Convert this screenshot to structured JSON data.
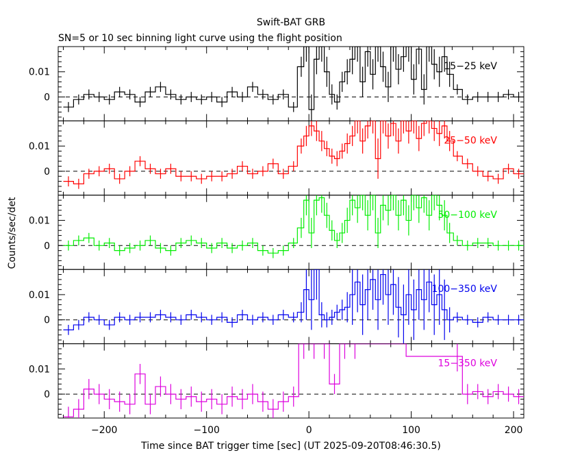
{
  "title": "Swift-BAT GRB",
  "subtitle": "SN=5 or 10 sec binning light curve using the flight position",
  "chart_data": {
    "type": "line",
    "xlabel": "Time since BAT trigger time [sec] (UT 2025-09-20T08:46:30.5)",
    "ylabel": "Counts/sec/det",
    "xlim": [
      -245,
      210
    ],
    "ylim": [
      -0.0095,
      0.02
    ],
    "x_ticks": [
      -200,
      -100,
      0,
      100,
      200
    ],
    "x_tick_labels": [
      "−200",
      "−100",
      "0",
      "100",
      "200"
    ],
    "y_ticks": [
      0,
      0.01
    ],
    "y_tick_labels": [
      "0",
      "0.01"
    ],
    "zero_line": "dashed",
    "panels": [
      {
        "band": "15−25 keV",
        "color": "#000000",
        "x": [
          -235,
          -225,
          -215,
          -205,
          -195,
          -185,
          -175,
          -165,
          -155,
          -145,
          -135,
          -125,
          -115,
          -105,
          -95,
          -85,
          -75,
          -65,
          -55,
          -45,
          -35,
          -25,
          -15,
          -7.5,
          -2.5,
          2.5,
          7.5,
          12.5,
          17.5,
          22.5,
          27.5,
          32.5,
          37.5,
          42.5,
          47.5,
          52.5,
          57.5,
          62.5,
          67.5,
          72.5,
          77.5,
          82.5,
          87.5,
          92.5,
          97.5,
          102.5,
          107.5,
          112.5,
          117.5,
          122.5,
          127.5,
          132.5,
          137.5,
          145,
          155,
          165,
          175,
          185,
          195,
          205
        ],
        "values": [
          -0.004,
          -0.001,
          0.001,
          0.0,
          -0.001,
          0.002,
          0.001,
          -0.002,
          0.002,
          0.004,
          0.001,
          -0.001,
          0.0,
          -0.001,
          0.0,
          -0.002,
          0.002,
          0.0,
          0.004,
          0.001,
          -0.001,
          0.001,
          -0.004,
          0.012,
          0.02,
          -0.005,
          0.015,
          0.02,
          0.01,
          0.001,
          -0.002,
          0.006,
          0.01,
          0.015,
          0.02,
          0.006,
          0.018,
          0.009,
          0.02,
          0.012,
          0.004,
          0.02,
          0.011,
          0.016,
          0.02,
          0.007,
          0.019,
          0.003,
          0.02,
          0.013,
          0.01,
          0.016,
          0.009,
          0.003,
          -0.001,
          0.0,
          0.0,
          0.0,
          0.001,
          0.0
        ],
        "errors": [
          0.002,
          0.002,
          0.002,
          0.002,
          0.002,
          0.002,
          0.002,
          0.002,
          0.002,
          0.002,
          0.002,
          0.002,
          0.002,
          0.002,
          0.002,
          0.002,
          0.002,
          0.002,
          0.002,
          0.002,
          0.002,
          0.002,
          0.002,
          0.004,
          0.006,
          0.006,
          0.006,
          0.006,
          0.006,
          0.004,
          0.003,
          0.004,
          0.005,
          0.006,
          0.006,
          0.006,
          0.006,
          0.006,
          0.006,
          0.006,
          0.006,
          0.006,
          0.006,
          0.006,
          0.006,
          0.006,
          0.006,
          0.006,
          0.006,
          0.006,
          0.006,
          0.006,
          0.005,
          0.002,
          0.002,
          0.002,
          0.002,
          0.002,
          0.002,
          0.002
        ]
      },
      {
        "band": "25−50 keV",
        "color": "#ff0000",
        "x": [
          -235,
          -225,
          -215,
          -205,
          -195,
          -185,
          -175,
          -165,
          -155,
          -145,
          -135,
          -125,
          -115,
          -105,
          -95,
          -85,
          -75,
          -65,
          -55,
          -45,
          -35,
          -25,
          -15,
          -7.5,
          -2.5,
          2.5,
          7.5,
          12.5,
          17.5,
          22.5,
          27.5,
          32.5,
          37.5,
          42.5,
          47.5,
          52.5,
          57.5,
          62.5,
          67.5,
          72.5,
          77.5,
          82.5,
          87.5,
          92.5,
          97.5,
          102.5,
          107.5,
          112.5,
          117.5,
          122.5,
          127.5,
          132.5,
          137.5,
          145,
          155,
          165,
          175,
          185,
          195,
          205
        ],
        "values": [
          -0.004,
          -0.005,
          -0.001,
          0.0,
          0.001,
          -0.003,
          0.0,
          0.004,
          0.001,
          -0.001,
          0.001,
          -0.002,
          -0.002,
          -0.003,
          -0.002,
          -0.002,
          -0.001,
          0.002,
          -0.001,
          0.0,
          0.003,
          -0.001,
          0.002,
          0.01,
          0.014,
          0.018,
          0.016,
          0.012,
          0.009,
          0.006,
          0.005,
          0.008,
          0.011,
          0.014,
          0.02,
          0.012,
          0.018,
          0.02,
          0.005,
          0.02,
          0.014,
          0.019,
          0.012,
          0.02,
          0.016,
          0.02,
          0.013,
          0.019,
          0.02,
          0.017,
          0.015,
          0.018,
          0.012,
          0.006,
          0.003,
          0.0,
          -0.002,
          -0.003,
          0.001,
          -0.001
        ],
        "errors": [
          0.002,
          0.002,
          0.002,
          0.002,
          0.002,
          0.002,
          0.002,
          0.002,
          0.002,
          0.002,
          0.002,
          0.002,
          0.002,
          0.002,
          0.002,
          0.002,
          0.002,
          0.002,
          0.002,
          0.002,
          0.002,
          0.002,
          0.002,
          0.003,
          0.004,
          0.004,
          0.004,
          0.004,
          0.003,
          0.003,
          0.003,
          0.003,
          0.004,
          0.004,
          0.005,
          0.005,
          0.005,
          0.005,
          0.008,
          0.005,
          0.005,
          0.005,
          0.005,
          0.005,
          0.005,
          0.005,
          0.005,
          0.005,
          0.005,
          0.005,
          0.005,
          0.005,
          0.004,
          0.002,
          0.002,
          0.002,
          0.002,
          0.002,
          0.002,
          0.002
        ]
      },
      {
        "band": "50−100 keV",
        "color": "#00ee00",
        "x": [
          -235,
          -225,
          -215,
          -205,
          -195,
          -185,
          -175,
          -165,
          -155,
          -145,
          -135,
          -125,
          -115,
          -105,
          -95,
          -85,
          -75,
          -65,
          -55,
          -45,
          -35,
          -25,
          -15,
          -7.5,
          -2.5,
          2.5,
          7.5,
          12.5,
          17.5,
          22.5,
          27.5,
          32.5,
          37.5,
          42.5,
          47.5,
          52.5,
          57.5,
          62.5,
          67.5,
          72.5,
          77.5,
          82.5,
          87.5,
          92.5,
          97.5,
          102.5,
          107.5,
          112.5,
          117.5,
          122.5,
          127.5,
          132.5,
          137.5,
          145,
          155,
          165,
          175,
          185,
          195,
          205
        ],
        "values": [
          0.0,
          0.002,
          0.003,
          0.0,
          0.001,
          -0.002,
          -0.001,
          0.0,
          0.002,
          -0.001,
          -0.002,
          0.001,
          0.002,
          0.001,
          -0.001,
          0.001,
          -0.001,
          0.0,
          0.001,
          -0.002,
          -0.003,
          -0.002,
          0.001,
          0.007,
          0.018,
          0.005,
          0.018,
          0.019,
          0.012,
          0.006,
          0.002,
          0.005,
          0.01,
          0.018,
          0.015,
          0.02,
          0.012,
          0.02,
          0.005,
          0.016,
          0.014,
          0.02,
          0.012,
          0.018,
          0.01,
          0.02,
          0.015,
          0.019,
          0.012,
          0.02,
          0.016,
          0.012,
          0.005,
          0.002,
          0.0,
          0.001,
          0.001,
          0.0,
          0.0,
          0.0
        ],
        "errors": [
          0.002,
          0.002,
          0.002,
          0.002,
          0.002,
          0.002,
          0.002,
          0.002,
          0.002,
          0.002,
          0.002,
          0.002,
          0.002,
          0.002,
          0.002,
          0.002,
          0.002,
          0.002,
          0.002,
          0.002,
          0.002,
          0.002,
          0.002,
          0.004,
          0.006,
          0.006,
          0.006,
          0.006,
          0.005,
          0.004,
          0.003,
          0.004,
          0.005,
          0.006,
          0.006,
          0.006,
          0.006,
          0.006,
          0.006,
          0.006,
          0.006,
          0.006,
          0.006,
          0.006,
          0.006,
          0.006,
          0.006,
          0.006,
          0.006,
          0.006,
          0.006,
          0.006,
          0.004,
          0.002,
          0.002,
          0.002,
          0.002,
          0.002,
          0.002,
          0.002
        ]
      },
      {
        "band": "100−350 keV",
        "color": "#0000ee",
        "x": [
          -235,
          -225,
          -215,
          -205,
          -195,
          -185,
          -175,
          -165,
          -155,
          -145,
          -135,
          -125,
          -115,
          -105,
          -95,
          -85,
          -75,
          -65,
          -55,
          -45,
          -35,
          -25,
          -15,
          -7.5,
          -2.5,
          2.5,
          7.5,
          12.5,
          17.5,
          22.5,
          27.5,
          32.5,
          37.5,
          42.5,
          47.5,
          52.5,
          57.5,
          62.5,
          67.5,
          72.5,
          77.5,
          82.5,
          87.5,
          92.5,
          97.5,
          102.5,
          107.5,
          112.5,
          117.5,
          122.5,
          127.5,
          132.5,
          137.5,
          145,
          155,
          165,
          175,
          185,
          195,
          205
        ],
        "values": [
          -0.004,
          -0.002,
          0.001,
          0.0,
          -0.002,
          0.001,
          0.0,
          0.001,
          0.001,
          0.002,
          0.001,
          0.0,
          0.002,
          0.001,
          0.0,
          0.001,
          -0.001,
          0.002,
          0.0,
          0.001,
          0.0,
          0.002,
          0.001,
          0.003,
          0.012,
          0.008,
          0.02,
          0.002,
          0.0,
          0.001,
          0.003,
          0.004,
          0.005,
          0.01,
          0.015,
          0.006,
          0.012,
          0.016,
          0.008,
          0.018,
          0.01,
          0.014,
          0.005,
          0.002,
          0.01,
          0.004,
          0.012,
          0.008,
          0.015,
          0.006,
          0.01,
          0.004,
          0.0,
          0.001,
          0.0,
          -0.001,
          0.001,
          0.0,
          0.0,
          0.0
        ],
        "errors": [
          0.002,
          0.002,
          0.002,
          0.002,
          0.002,
          0.002,
          0.002,
          0.002,
          0.002,
          0.002,
          0.002,
          0.002,
          0.002,
          0.002,
          0.002,
          0.002,
          0.002,
          0.002,
          0.002,
          0.002,
          0.002,
          0.002,
          0.002,
          0.004,
          0.012,
          0.012,
          0.012,
          0.005,
          0.003,
          0.003,
          0.003,
          0.004,
          0.006,
          0.012,
          0.012,
          0.012,
          0.012,
          0.012,
          0.012,
          0.012,
          0.012,
          0.012,
          0.012,
          0.012,
          0.012,
          0.012,
          0.012,
          0.012,
          0.012,
          0.012,
          0.012,
          0.012,
          0.005,
          0.002,
          0.002,
          0.002,
          0.002,
          0.002,
          0.002,
          0.002
        ]
      },
      {
        "band": "15−350 keV",
        "color": "#dd00dd",
        "x": [
          -235,
          -225,
          -215,
          -205,
          -195,
          -185,
          -175,
          -165,
          -155,
          -145,
          -135,
          -125,
          -115,
          -105,
          -95,
          -85,
          -75,
          -65,
          -55,
          -45,
          -35,
          -25,
          -15,
          -5,
          5,
          15,
          25,
          35,
          45,
          145,
          155,
          165,
          175,
          185,
          195,
          205
        ],
        "values": [
          -0.009,
          -0.006,
          0.002,
          0.0,
          -0.002,
          -0.003,
          -0.004,
          0.008,
          -0.004,
          0.003,
          0.0,
          -0.002,
          -0.001,
          -0.003,
          -0.002,
          -0.004,
          -0.001,
          -0.002,
          0.0,
          -0.003,
          -0.006,
          -0.003,
          -0.001,
          0.02,
          0.02,
          0.02,
          0.004,
          0.02,
          0.02,
          0.015,
          0.0,
          0.001,
          -0.001,
          0.001,
          0.0,
          -0.001
        ],
        "errors": [
          0.004,
          0.004,
          0.004,
          0.004,
          0.004,
          0.004,
          0.004,
          0.004,
          0.004,
          0.004,
          0.004,
          0.004,
          0.004,
          0.004,
          0.004,
          0.004,
          0.004,
          0.004,
          0.004,
          0.004,
          0.004,
          0.004,
          0.004,
          0.006,
          0.006,
          0.006,
          0.004,
          0.006,
          0.006,
          0.006,
          0.004,
          0.003,
          0.003,
          0.003,
          0.003,
          0.003
        ]
      }
    ]
  }
}
